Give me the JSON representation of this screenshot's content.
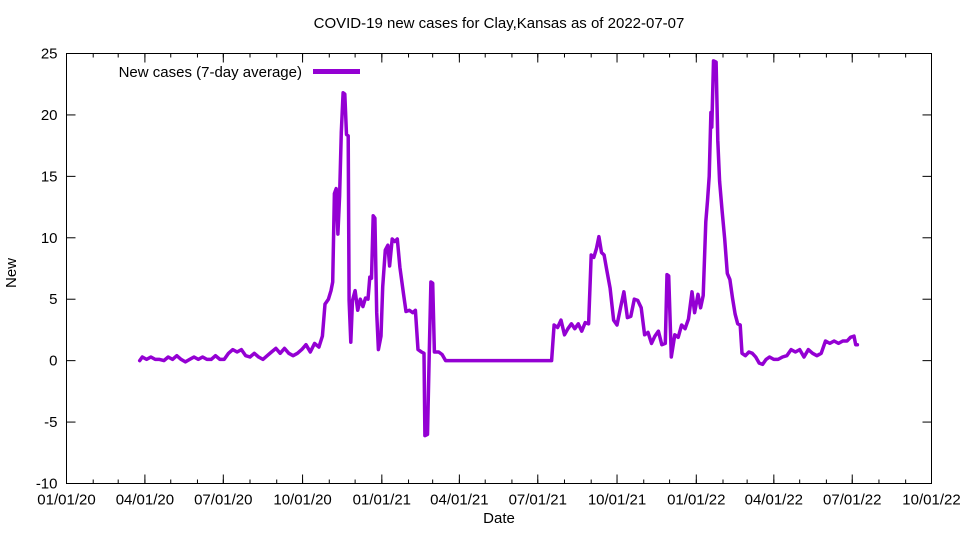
{
  "chart_data": {
    "type": "line",
    "title": "COVID-19 new cases for Clay,Kansas as of 2022-07-07",
    "xlabel": "Date",
    "ylabel": "New",
    "xlim": [
      "2020-01-01",
      "2022-10-01"
    ],
    "ylim": [
      -10,
      25
    ],
    "y_ticks": [
      -10,
      -5,
      0,
      5,
      10,
      15,
      20,
      25
    ],
    "x_ticks": [
      {
        "label": "01/01/20",
        "date": "2020-01-01"
      },
      {
        "label": "04/01/20",
        "date": "2020-04-01"
      },
      {
        "label": "07/01/20",
        "date": "2020-07-01"
      },
      {
        "label": "10/01/20",
        "date": "2020-10-01"
      },
      {
        "label": "01/01/21",
        "date": "2021-01-01"
      },
      {
        "label": "04/01/21",
        "date": "2021-04-01"
      },
      {
        "label": "07/01/21",
        "date": "2021-07-01"
      },
      {
        "label": "10/01/21",
        "date": "2021-10-01"
      },
      {
        "label": "01/01/22",
        "date": "2022-01-01"
      },
      {
        "label": "04/01/22",
        "date": "2022-04-01"
      },
      {
        "label": "07/01/22",
        "date": "2022-07-01"
      },
      {
        "label": "10/01/22",
        "date": "2022-10-01"
      }
    ],
    "minor_x_tick_interval": "month",
    "grid": false,
    "legend_position": "top-left-inside",
    "series": [
      {
        "name": "New cases (7-day average)",
        "color": "#9400d3",
        "points": [
          [
            "2020-03-26",
            0.0
          ],
          [
            "2020-03-29",
            0.3
          ],
          [
            "2020-04-03",
            0.1
          ],
          [
            "2020-04-08",
            0.3
          ],
          [
            "2020-04-13",
            0.1
          ],
          [
            "2020-04-18",
            0.1
          ],
          [
            "2020-04-23",
            0.0
          ],
          [
            "2020-04-28",
            0.3
          ],
          [
            "2020-05-03",
            0.1
          ],
          [
            "2020-05-08",
            0.4
          ],
          [
            "2020-05-13",
            0.1
          ],
          [
            "2020-05-18",
            -0.1
          ],
          [
            "2020-05-23",
            0.1
          ],
          [
            "2020-05-28",
            0.3
          ],
          [
            "2020-06-02",
            0.1
          ],
          [
            "2020-06-07",
            0.3
          ],
          [
            "2020-06-12",
            0.1
          ],
          [
            "2020-06-17",
            0.1
          ],
          [
            "2020-06-22",
            0.4
          ],
          [
            "2020-06-27",
            0.1
          ],
          [
            "2020-07-02",
            0.1
          ],
          [
            "2020-07-07",
            0.6
          ],
          [
            "2020-07-12",
            0.9
          ],
          [
            "2020-07-17",
            0.7
          ],
          [
            "2020-07-22",
            0.9
          ],
          [
            "2020-07-27",
            0.4
          ],
          [
            "2020-08-01",
            0.3
          ],
          [
            "2020-08-06",
            0.6
          ],
          [
            "2020-08-11",
            0.3
          ],
          [
            "2020-08-16",
            0.1
          ],
          [
            "2020-08-21",
            0.4
          ],
          [
            "2020-08-26",
            0.7
          ],
          [
            "2020-08-31",
            1.0
          ],
          [
            "2020-09-05",
            0.6
          ],
          [
            "2020-09-10",
            1.0
          ],
          [
            "2020-09-15",
            0.6
          ],
          [
            "2020-09-20",
            0.4
          ],
          [
            "2020-09-25",
            0.6
          ],
          [
            "2020-09-30",
            0.9
          ],
          [
            "2020-10-05",
            1.3
          ],
          [
            "2020-10-10",
            0.7
          ],
          [
            "2020-10-15",
            1.4
          ],
          [
            "2020-10-20",
            1.1
          ],
          [
            "2020-10-24",
            2.0
          ],
          [
            "2020-10-27",
            4.6
          ],
          [
            "2020-10-31",
            5.0
          ],
          [
            "2020-11-03",
            5.7
          ],
          [
            "2020-11-05",
            6.4
          ],
          [
            "2020-11-07",
            13.6
          ],
          [
            "2020-11-09",
            14.0
          ],
          [
            "2020-11-11",
            10.3
          ],
          [
            "2020-11-13",
            13.4
          ],
          [
            "2020-11-15",
            18.6
          ],
          [
            "2020-11-17",
            21.8
          ],
          [
            "2020-11-19",
            21.7
          ],
          [
            "2020-11-21",
            18.4
          ],
          [
            "2020-11-23",
            18.3
          ],
          [
            "2020-11-24",
            4.9
          ],
          [
            "2020-11-26",
            1.5
          ],
          [
            "2020-11-28",
            4.9
          ],
          [
            "2020-12-01",
            5.7
          ],
          [
            "2020-12-04",
            4.1
          ],
          [
            "2020-12-07",
            5.0
          ],
          [
            "2020-12-10",
            4.4
          ],
          [
            "2020-12-13",
            5.1
          ],
          [
            "2020-12-16",
            5.0
          ],
          [
            "2020-12-18",
            6.8
          ],
          [
            "2020-12-20",
            6.7
          ],
          [
            "2020-12-22",
            11.8
          ],
          [
            "2020-12-24",
            11.6
          ],
          [
            "2020-12-26",
            3.9
          ],
          [
            "2020-12-28",
            0.9
          ],
          [
            "2020-12-31",
            2.0
          ],
          [
            "2021-01-02",
            6.0
          ],
          [
            "2021-01-05",
            9.0
          ],
          [
            "2021-01-08",
            9.4
          ],
          [
            "2021-01-10",
            7.7
          ],
          [
            "2021-01-13",
            9.9
          ],
          [
            "2021-01-16",
            9.7
          ],
          [
            "2021-01-19",
            9.9
          ],
          [
            "2021-01-22",
            7.6
          ],
          [
            "2021-01-26",
            5.5
          ],
          [
            "2021-01-29",
            4.0
          ],
          [
            "2021-02-02",
            4.1
          ],
          [
            "2021-02-06",
            3.9
          ],
          [
            "2021-02-09",
            4.1
          ],
          [
            "2021-02-12",
            0.9
          ],
          [
            "2021-02-16",
            0.7
          ],
          [
            "2021-02-19",
            0.6
          ],
          [
            "2021-02-20",
            -6.1
          ],
          [
            "2021-02-23",
            -6.0
          ],
          [
            "2021-02-25",
            0.4
          ],
          [
            "2021-02-27",
            6.4
          ],
          [
            "2021-03-01",
            6.3
          ],
          [
            "2021-03-03",
            0.7
          ],
          [
            "2021-03-08",
            0.7
          ],
          [
            "2021-03-12",
            0.5
          ],
          [
            "2021-03-16",
            0.0
          ],
          [
            "2021-04-01",
            0.0
          ],
          [
            "2021-05-01",
            0.0
          ],
          [
            "2021-06-01",
            0.0
          ],
          [
            "2021-07-01",
            0.0
          ],
          [
            "2021-07-17",
            0.0
          ],
          [
            "2021-07-20",
            2.9
          ],
          [
            "2021-07-24",
            2.7
          ],
          [
            "2021-07-28",
            3.3
          ],
          [
            "2021-08-01",
            2.1
          ],
          [
            "2021-08-05",
            2.6
          ],
          [
            "2021-08-09",
            3.0
          ],
          [
            "2021-08-13",
            2.6
          ],
          [
            "2021-08-17",
            3.0
          ],
          [
            "2021-08-21",
            2.4
          ],
          [
            "2021-08-25",
            3.1
          ],
          [
            "2021-08-29",
            3.0
          ],
          [
            "2021-09-01",
            8.6
          ],
          [
            "2021-09-04",
            8.4
          ],
          [
            "2021-09-07",
            9.1
          ],
          [
            "2021-09-10",
            10.1
          ],
          [
            "2021-09-13",
            8.8
          ],
          [
            "2021-09-16",
            8.6
          ],
          [
            "2021-09-19",
            7.4
          ],
          [
            "2021-09-23",
            5.9
          ],
          [
            "2021-09-27",
            3.3
          ],
          [
            "2021-10-01",
            2.9
          ],
          [
            "2021-10-05",
            4.3
          ],
          [
            "2021-10-09",
            5.6
          ],
          [
            "2021-10-13",
            3.5
          ],
          [
            "2021-10-17",
            3.6
          ],
          [
            "2021-10-21",
            5.0
          ],
          [
            "2021-10-25",
            4.9
          ],
          [
            "2021-10-29",
            4.3
          ],
          [
            "2021-11-02",
            2.1
          ],
          [
            "2021-11-06",
            2.3
          ],
          [
            "2021-11-10",
            1.4
          ],
          [
            "2021-11-14",
            2.0
          ],
          [
            "2021-11-18",
            2.4
          ],
          [
            "2021-11-22",
            1.3
          ],
          [
            "2021-11-26",
            1.4
          ],
          [
            "2021-11-28",
            7.0
          ],
          [
            "2021-11-30",
            6.9
          ],
          [
            "2021-12-03",
            0.3
          ],
          [
            "2021-12-07",
            2.1
          ],
          [
            "2021-12-11",
            1.9
          ],
          [
            "2021-12-15",
            2.9
          ],
          [
            "2021-12-19",
            2.6
          ],
          [
            "2021-12-23",
            3.4
          ],
          [
            "2021-12-27",
            5.6
          ],
          [
            "2021-12-30",
            3.9
          ],
          [
            "2022-01-03",
            5.4
          ],
          [
            "2022-01-06",
            4.3
          ],
          [
            "2022-01-09",
            5.3
          ],
          [
            "2022-01-12",
            11.3
          ],
          [
            "2022-01-14",
            13.0
          ],
          [
            "2022-01-16",
            15.0
          ],
          [
            "2022-01-18",
            20.2
          ],
          [
            "2022-01-19",
            19.0
          ],
          [
            "2022-01-21",
            24.4
          ],
          [
            "2022-01-24",
            24.3
          ],
          [
            "2022-01-26",
            17.9
          ],
          [
            "2022-01-28",
            14.6
          ],
          [
            "2022-01-31",
            12.2
          ],
          [
            "2022-02-03",
            9.9
          ],
          [
            "2022-02-06",
            7.1
          ],
          [
            "2022-02-09",
            6.6
          ],
          [
            "2022-02-12",
            5.1
          ],
          [
            "2022-02-15",
            3.8
          ],
          [
            "2022-02-18",
            3.0
          ],
          [
            "2022-02-21",
            2.9
          ],
          [
            "2022-02-23",
            0.6
          ],
          [
            "2022-02-27",
            0.4
          ],
          [
            "2022-03-03",
            0.7
          ],
          [
            "2022-03-07",
            0.6
          ],
          [
            "2022-03-11",
            0.3
          ],
          [
            "2022-03-15",
            -0.2
          ],
          [
            "2022-03-19",
            -0.3
          ],
          [
            "2022-03-23",
            0.1
          ],
          [
            "2022-03-27",
            0.3
          ],
          [
            "2022-04-01",
            0.1
          ],
          [
            "2022-04-06",
            0.1
          ],
          [
            "2022-04-11",
            0.3
          ],
          [
            "2022-04-16",
            0.4
          ],
          [
            "2022-04-21",
            0.9
          ],
          [
            "2022-04-26",
            0.7
          ],
          [
            "2022-05-01",
            0.9
          ],
          [
            "2022-05-06",
            0.3
          ],
          [
            "2022-05-11",
            0.9
          ],
          [
            "2022-05-16",
            0.6
          ],
          [
            "2022-05-21",
            0.4
          ],
          [
            "2022-05-26",
            0.6
          ],
          [
            "2022-05-31",
            1.6
          ],
          [
            "2022-06-05",
            1.4
          ],
          [
            "2022-06-10",
            1.6
          ],
          [
            "2022-06-15",
            1.4
          ],
          [
            "2022-06-20",
            1.6
          ],
          [
            "2022-06-25",
            1.6
          ],
          [
            "2022-06-29",
            1.9
          ],
          [
            "2022-07-03",
            2.0
          ],
          [
            "2022-07-05",
            1.3
          ],
          [
            "2022-07-07",
            1.3
          ]
        ]
      }
    ]
  }
}
